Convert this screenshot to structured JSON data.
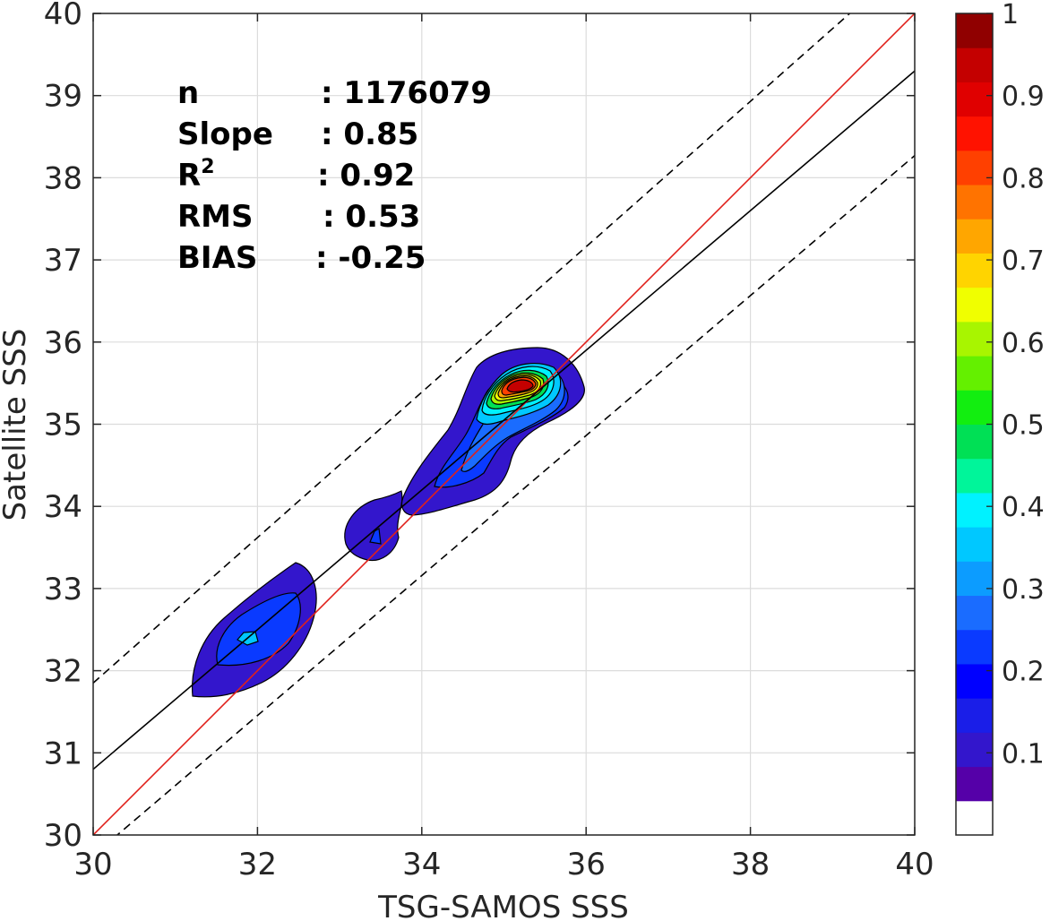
{
  "chart_data": {
    "type": "heatmap",
    "description_type": "filled-contour density scatter",
    "xlabel": "TSG-SAMOS SSS",
    "ylabel": "Satellite SSS",
    "xlim": [
      30,
      40
    ],
    "ylim": [
      30,
      40
    ],
    "xticks": [
      "30",
      "32",
      "34",
      "36",
      "38",
      "40"
    ],
    "yticks": [
      "30",
      "31",
      "32",
      "33",
      "34",
      "35",
      "36",
      "37",
      "38",
      "39",
      "40"
    ],
    "grid": true,
    "stats": [
      {
        "label": "n",
        "value": ": 1176079"
      },
      {
        "label": "Slope",
        "value": ": 0.85"
      },
      {
        "label": "R",
        "sup": "2",
        "value": ": 0.92"
      },
      {
        "label": "RMS",
        "value": ": 0.53"
      },
      {
        "label": "BIAS",
        "value": ": -0.25"
      }
    ],
    "lines": {
      "identity": {
        "x": [
          30,
          40
        ],
        "y": [
          30,
          40
        ],
        "color": "#e0201b"
      },
      "fit": {
        "x": [
          30,
          40
        ],
        "y": [
          30.8,
          39.3
        ],
        "color": "#000000"
      },
      "upper_bound": {
        "x": [
          30,
          40
        ],
        "y": [
          31.85,
          40.7
        ],
        "color": "#000000",
        "dash": true
      },
      "lower_bound": {
        "x": [
          30,
          40
        ],
        "y": [
          29.75,
          38.27
        ],
        "color": "#000000",
        "dash": true
      }
    },
    "colorbar": {
      "range": [
        0,
        1
      ],
      "ticks": [
        "0.1",
        "0.2",
        "0.3",
        "0.4",
        "0.5",
        "0.6",
        "0.7",
        "0.8",
        "0.9",
        "1"
      ],
      "colors": [
        "#ffffff",
        "#5500a8",
        "#3316cc",
        "#1a1ee8",
        "#0000ff",
        "#0a3aff",
        "#1a6cff",
        "#0c9cff",
        "#00c8ff",
        "#00f2ff",
        "#00f59a",
        "#00e055",
        "#12ee10",
        "#64f000",
        "#a8f500",
        "#f0ff00",
        "#ffd400",
        "#ffa600",
        "#ff7300",
        "#ff4000",
        "#ff1200",
        "#e00000",
        "#c40000",
        "#900000"
      ]
    }
  }
}
